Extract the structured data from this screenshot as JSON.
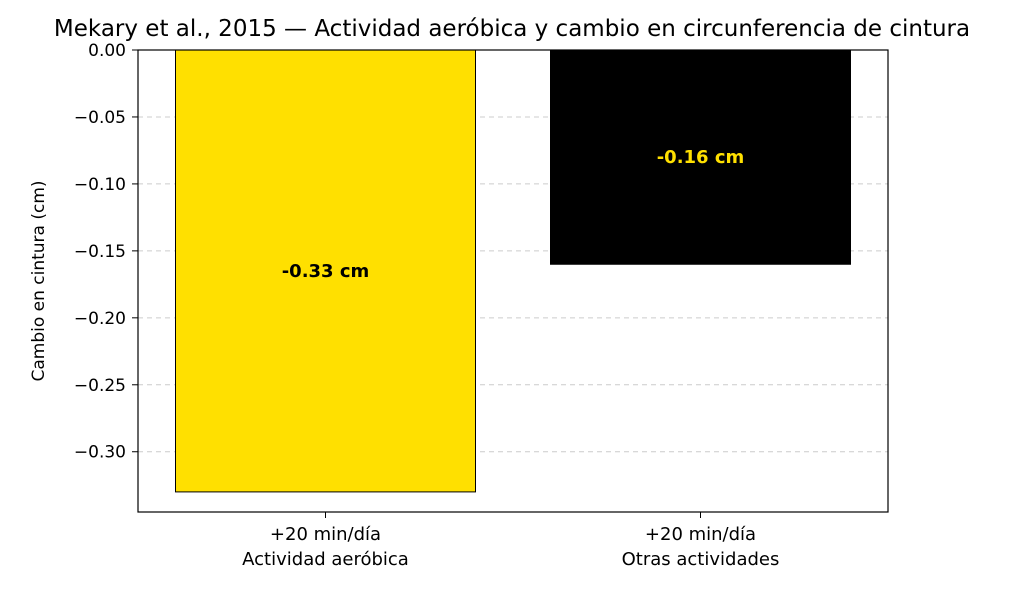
{
  "chart_data": {
    "type": "bar",
    "title": "Mekary et al., 2015 — Actividad aeróbica y cambio en circunferencia de cintura",
    "xlabel": "",
    "ylabel": "Cambio en cintura (cm)",
    "ylim": [
      -0.345,
      0.0
    ],
    "yticks": [
      0.0,
      -0.05,
      -0.1,
      -0.15,
      -0.2,
      -0.25,
      -0.3
    ],
    "ytick_labels": [
      "0.00",
      "−0.05",
      "−0.10",
      "−0.15",
      "−0.20",
      "−0.25",
      "−0.30"
    ],
    "categories": [
      [
        "+20 min/día",
        "Actividad aeróbica"
      ],
      [
        "+20 min/día",
        "Otras actividades"
      ]
    ],
    "values": [
      -0.33,
      -0.16
    ],
    "data_labels": [
      "-0.33 cm",
      "-0.16 cm"
    ],
    "bar_colors": [
      "#FFE000",
      "#000000"
    ],
    "label_colors": [
      "#000000",
      "#FFE000"
    ],
    "grid": {
      "axis": "y",
      "style": "dashed",
      "color": "#cccccc"
    },
    "legend": "none"
  }
}
